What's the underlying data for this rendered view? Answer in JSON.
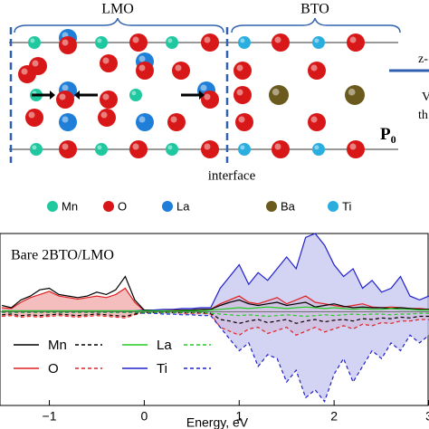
{
  "structure": {
    "lmo_label": "LMO",
    "bto_label": "BTO",
    "interface_label": "interface",
    "polarization": {
      "main": "P",
      "sub": "0"
    },
    "side_texts": [
      "z-",
      "V",
      "th"
    ]
  },
  "atom_legend": [
    "Mn",
    "O",
    "La",
    "Ba",
    "Ti"
  ],
  "chart_data": {
    "type": "line",
    "title": "Bare 2BTO/LMO",
    "x_label": "Energy, eV",
    "x": [
      -1.5,
      -1.4,
      -1.3,
      -1.2,
      -1.1,
      -1.0,
      -0.9,
      -0.8,
      -0.7,
      -0.6,
      -0.5,
      -0.4,
      -0.3,
      -0.2,
      -0.1,
      0.0,
      0.1,
      0.2,
      0.3,
      0.4,
      0.5,
      0.6,
      0.7,
      0.8,
      0.9,
      1.0,
      1.1,
      1.2,
      1.3,
      1.4,
      1.5,
      1.6,
      1.7,
      1.8,
      1.9,
      2.0,
      2.1,
      2.2,
      2.3,
      2.4,
      2.5,
      2.6,
      2.7,
      2.8,
      2.9,
      3.0
    ],
    "series": [
      {
        "name": "Mn",
        "color": "#000000",
        "fill": null,
        "values": [
          0.08,
          0.05,
          0.15,
          0.2,
          0.28,
          0.3,
          0.22,
          0.2,
          0.18,
          0.2,
          0.25,
          0.22,
          0.28,
          0.45,
          0.15,
          0.02,
          0.01,
          0.01,
          0.01,
          0.02,
          0.02,
          0.03,
          0.03,
          0.08,
          0.12,
          0.15,
          0.1,
          0.08,
          0.1,
          0.12,
          0.08,
          0.1,
          0.12,
          0.06,
          0.08,
          0.1,
          0.07,
          0.05,
          0.06,
          0.05,
          0.05,
          0.04,
          0.05,
          0.04,
          0.03,
          0.03
        ],
        "values_down": [
          -0.04,
          -0.03,
          -0.05,
          -0.04,
          -0.05,
          -0.04,
          -0.03,
          -0.04,
          -0.05,
          -0.04,
          -0.03,
          -0.04,
          -0.05,
          -0.06,
          -0.03,
          -0.01,
          -0.01,
          -0.01,
          -0.01,
          -0.01,
          -0.01,
          -0.01,
          -0.02,
          -0.1,
          -0.12,
          -0.15,
          -0.12,
          -0.1,
          -0.14,
          -0.12,
          -0.1,
          -0.15,
          -0.12,
          -0.1,
          -0.13,
          -0.11,
          -0.1,
          -0.12,
          -0.09,
          -0.1,
          -0.08,
          -0.09,
          -0.07,
          -0.08,
          -0.06,
          -0.06
        ]
      },
      {
        "name": "La",
        "color": "#22cc22",
        "fill": null,
        "values": [
          0.01,
          0.01,
          0.01,
          0.01,
          0.01,
          0.01,
          0.01,
          0.01,
          0.01,
          0.01,
          0.01,
          0.01,
          0.01,
          0.01,
          0.01,
          0.01,
          0.01,
          0.01,
          0.01,
          0.01,
          0.01,
          0.01,
          0.02,
          0.03,
          0.04,
          0.05,
          0.04,
          0.05,
          0.06,
          0.05,
          0.04,
          0.05,
          0.06,
          0.05,
          0.04,
          0.05,
          0.04,
          0.03,
          0.04,
          0.03,
          0.03,
          0.04,
          0.03,
          0.03,
          0.02,
          0.02
        ],
        "values_down": [
          -0.01,
          -0.01,
          -0.01,
          -0.01,
          -0.01,
          -0.01,
          -0.01,
          -0.01,
          -0.01,
          -0.01,
          -0.01,
          -0.01,
          -0.01,
          -0.01,
          -0.01,
          -0.01,
          -0.01,
          -0.01,
          -0.01,
          -0.01,
          -0.01,
          -0.01,
          -0.02,
          -0.03,
          -0.04,
          -0.05,
          -0.04,
          -0.05,
          -0.06,
          -0.05,
          -0.04,
          -0.05,
          -0.06,
          -0.05,
          -0.04,
          -0.05,
          -0.04,
          -0.03,
          -0.04,
          -0.03,
          -0.03,
          -0.04,
          -0.03,
          -0.03,
          -0.02,
          -0.02
        ]
      },
      {
        "name": "O",
        "color": "#e02020",
        "fill": "#f2a8a8",
        "values": [
          0.05,
          0.04,
          0.12,
          0.18,
          0.22,
          0.26,
          0.2,
          0.18,
          0.16,
          0.18,
          0.2,
          0.18,
          0.22,
          0.3,
          0.12,
          0.01,
          0.01,
          0.01,
          0.02,
          0.02,
          0.02,
          0.03,
          0.03,
          0.1,
          0.15,
          0.2,
          0.12,
          0.1,
          0.14,
          0.18,
          0.1,
          0.15,
          0.2,
          0.12,
          0.1,
          0.08,
          0.06,
          0.08,
          0.1,
          0.06,
          0.05,
          0.06,
          0.05,
          0.04,
          0.04,
          0.03
        ],
        "values_down": [
          -0.06,
          -0.05,
          -0.07,
          -0.06,
          -0.07,
          -0.06,
          -0.05,
          -0.06,
          -0.07,
          -0.06,
          -0.05,
          -0.06,
          -0.07,
          -0.08,
          -0.04,
          -0.01,
          -0.01,
          -0.01,
          -0.01,
          -0.02,
          -0.02,
          -0.02,
          -0.03,
          -0.2,
          -0.25,
          -0.3,
          -0.22,
          -0.2,
          -0.28,
          -0.24,
          -0.2,
          -0.3,
          -0.25,
          -0.2,
          -0.26,
          -0.22,
          -0.18,
          -0.22,
          -0.16,
          -0.18,
          -0.14,
          -0.15,
          -0.12,
          -0.12,
          -0.1,
          -0.1
        ]
      },
      {
        "name": "Ti",
        "color": "#2020cc",
        "fill": "#c4c4f0",
        "values": [
          0.01,
          0.01,
          0.01,
          0.01,
          0.01,
          0.01,
          0.01,
          0.01,
          0.01,
          0.01,
          0.01,
          0.01,
          0.01,
          0.01,
          0.01,
          0.02,
          0.02,
          0.03,
          0.03,
          0.04,
          0.04,
          0.05,
          0.05,
          0.3,
          0.45,
          0.6,
          0.35,
          0.5,
          0.4,
          0.55,
          0.7,
          0.55,
          0.95,
          1.0,
          0.85,
          0.6,
          0.45,
          0.55,
          0.3,
          0.4,
          0.25,
          0.3,
          0.45,
          0.2,
          0.15,
          0.2
        ],
        "values_down": [
          -0.01,
          -0.01,
          -0.01,
          -0.01,
          -0.01,
          -0.01,
          -0.01,
          -0.01,
          -0.01,
          -0.01,
          -0.01,
          -0.01,
          -0.01,
          -0.01,
          -0.01,
          -0.02,
          -0.02,
          -0.03,
          -0.03,
          -0.04,
          -0.04,
          -0.05,
          -0.05,
          -0.2,
          -0.35,
          -0.5,
          -0.4,
          -0.7,
          -0.55,
          -0.6,
          -0.9,
          -0.75,
          -1.1,
          -1.0,
          -1.15,
          -0.8,
          -0.6,
          -0.9,
          -0.7,
          -0.5,
          -0.6,
          -0.4,
          -0.5,
          -0.3,
          -0.4,
          -0.3
        ]
      }
    ],
    "xlim": [
      -1.52,
      3.0
    ],
    "ylim": [
      -1.2,
      1.0
    ],
    "xticks": [
      {
        "value": -1,
        "label": "−1"
      },
      0,
      1,
      2,
      3
    ]
  }
}
